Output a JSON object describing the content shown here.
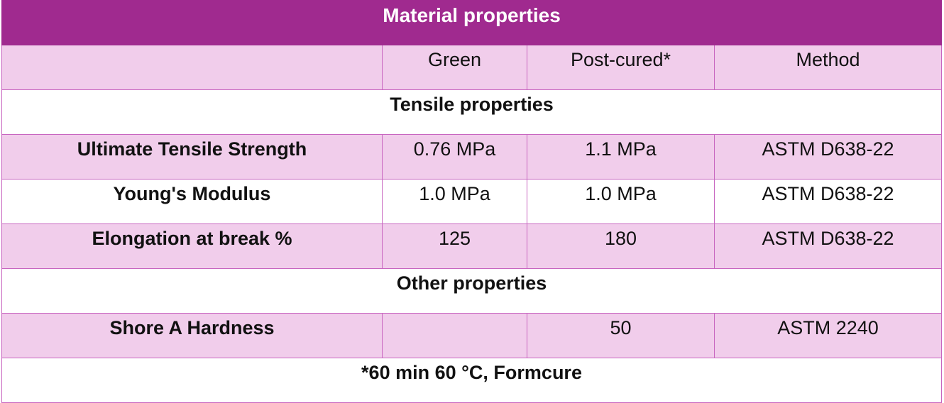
{
  "table": {
    "title": "Material properties",
    "headers": [
      "",
      "Green",
      "Post-cured*",
      "Method"
    ],
    "sections": [
      {
        "title": "Tensile properties",
        "rows": [
          {
            "property": "Ultimate Tensile Strength",
            "green": "0.76 MPa",
            "post_cured": "1.1 MPa",
            "method": "ASTM D638-22"
          },
          {
            "property": "Young's Modulus",
            "green": "1.0 MPa",
            "post_cured": "1.0 MPa",
            "method": "ASTM D638-22"
          },
          {
            "property": "Elongation at break %",
            "green": "125",
            "post_cured": "180",
            "method": "ASTM D638-22"
          }
        ]
      },
      {
        "title": "Other properties",
        "rows": [
          {
            "property": "Shore A Hardness",
            "green": "",
            "post_cured": "50",
            "method": "ASTM 2240"
          }
        ]
      }
    ],
    "footnote": "*60 min 60 °C, Formcure"
  }
}
